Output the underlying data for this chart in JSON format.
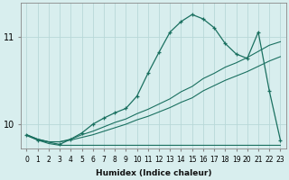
{
  "xlabel": "Humidex (Indice chaleur)",
  "xlim": [
    -0.5,
    23.5
  ],
  "ylim": [
    9.72,
    11.38
  ],
  "xticks": [
    0,
    1,
    2,
    3,
    4,
    5,
    6,
    7,
    8,
    9,
    10,
    11,
    12,
    13,
    14,
    15,
    16,
    17,
    18,
    19,
    20,
    21,
    22,
    23
  ],
  "yticks": [
    10,
    11
  ],
  "background_color": "#d8eeee",
  "grid_color": "#b8d8d8",
  "line_color": "#1a7060",
  "lines": [
    {
      "x": [
        0,
        1,
        3,
        4,
        5,
        6,
        7,
        8,
        9,
        10,
        11,
        12,
        13,
        14,
        15,
        16,
        17,
        18,
        19,
        20,
        21,
        22,
        23
      ],
      "y": [
        9.88,
        9.82,
        9.77,
        9.83,
        9.9,
        10.0,
        10.07,
        10.13,
        10.18,
        10.32,
        10.58,
        10.82,
        11.05,
        11.17,
        11.25,
        11.2,
        11.1,
        10.92,
        10.8,
        10.75,
        11.05,
        10.38,
        9.82
      ],
      "marker": true
    },
    {
      "x": [
        0,
        1,
        2,
        3,
        4,
        5,
        6,
        7,
        8,
        9,
        10,
        11,
        12,
        13,
        14,
        15,
        16,
        17,
        18,
        19,
        20,
        21,
        22,
        23
      ],
      "y": [
        9.88,
        9.83,
        9.8,
        9.8,
        9.83,
        9.88,
        9.92,
        9.97,
        10.02,
        10.06,
        10.12,
        10.17,
        10.23,
        10.29,
        10.37,
        10.43,
        10.52,
        10.58,
        10.65,
        10.7,
        10.76,
        10.83,
        10.9,
        10.94
      ],
      "marker": false
    },
    {
      "x": [
        0,
        1,
        2,
        3,
        4,
        5,
        6,
        7,
        8,
        9,
        10,
        11,
        12,
        13,
        14,
        15,
        16,
        17,
        18,
        19,
        20,
        21,
        22,
        23
      ],
      "y": [
        9.88,
        9.83,
        9.8,
        9.8,
        9.82,
        9.85,
        9.88,
        9.92,
        9.96,
        10.0,
        10.05,
        10.09,
        10.14,
        10.19,
        10.25,
        10.3,
        10.38,
        10.44,
        10.5,
        10.55,
        10.6,
        10.66,
        10.72,
        10.77
      ],
      "marker": false
    },
    {
      "x": [
        0,
        1,
        2,
        3,
        4,
        5,
        6,
        7,
        8,
        9,
        10,
        11,
        12,
        13,
        14,
        15,
        22,
        23
      ],
      "y": [
        9.87,
        9.82,
        9.78,
        9.76,
        9.76,
        9.76,
        9.76,
        9.76,
        9.76,
        9.76,
        9.76,
        9.76,
        9.76,
        9.76,
        9.76,
        9.76,
        9.76,
        9.76
      ],
      "marker": false
    }
  ]
}
